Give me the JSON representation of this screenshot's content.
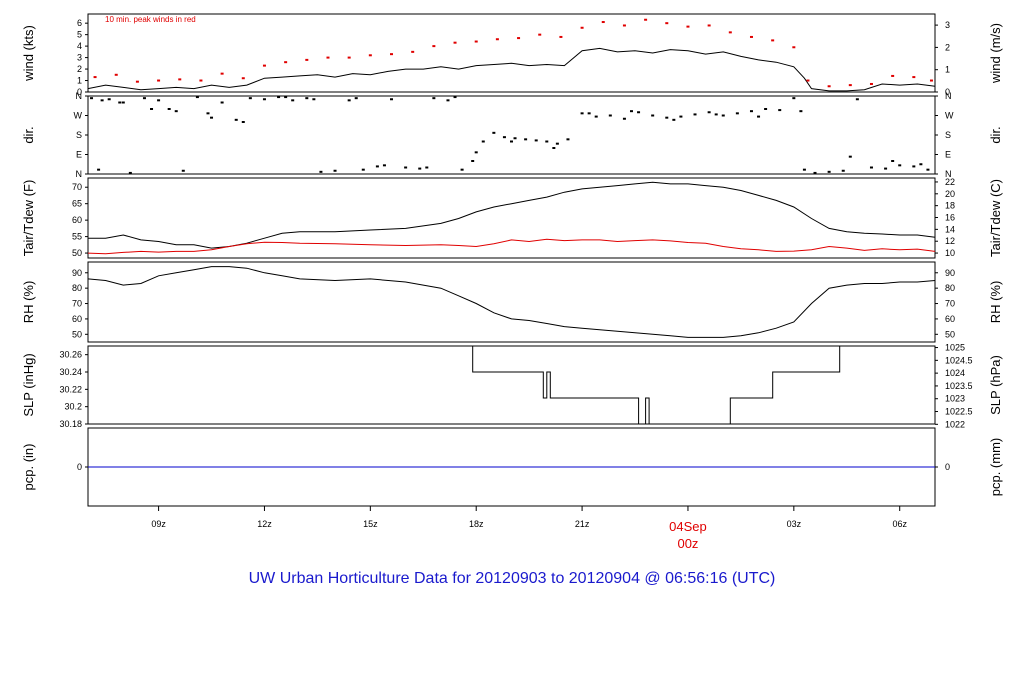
{
  "title": "UW Urban Horticulture Data for 20120903  to  20120904 @ 06:56:16  (UTC)",
  "colors": {
    "line": "#000000",
    "peak": "#e00000",
    "precip": "#0000cc",
    "title": "#1a1acd",
    "day": "#e00000"
  },
  "x_axis": {
    "range_hours": [
      7,
      31
    ],
    "ticks": [
      {
        "hour": 9,
        "label": "09z"
      },
      {
        "hour": 12,
        "label": "12z"
      },
      {
        "hour": 15,
        "label": "15z"
      },
      {
        "hour": 18,
        "label": "18z"
      },
      {
        "hour": 21,
        "label": "21z"
      },
      {
        "hour": 24,
        "label": "00z",
        "date_label": "04Sep",
        "highlight": true
      },
      {
        "hour": 27,
        "label": "03z"
      },
      {
        "hour": 30,
        "label": "06z"
      }
    ]
  },
  "chart_data": [
    {
      "id": "wind",
      "type": "line",
      "ylabel_left": "wind (kts)",
      "ylabel_right": "wind (m/s)",
      "ylim": [
        0,
        6.8
      ],
      "yticks_left": [
        0,
        1,
        2,
        3,
        4,
        5,
        6
      ],
      "yticks_right": [
        0,
        1,
        2,
        3
      ],
      "right_scale": 0.5144,
      "annotation": "10 min. peak winds in red",
      "series": [
        {
          "role": "speed",
          "x": [
            7.0,
            7.5,
            8.0,
            8.5,
            9.0,
            9.5,
            10.0,
            10.5,
            11.0,
            11.5,
            12.0,
            12.5,
            13.0,
            13.5,
            14.0,
            14.5,
            15.0,
            15.5,
            16.0,
            16.5,
            17.0,
            17.5,
            18.0,
            18.5,
            19.0,
            19.5,
            20.0,
            20.5,
            21.0,
            21.5,
            22.0,
            22.5,
            23.0,
            23.5,
            24.0,
            24.5,
            25.0,
            25.5,
            26.0,
            26.5,
            27.0,
            27.3,
            27.5,
            28.0,
            28.5,
            29.0,
            29.5,
            30.0,
            30.5,
            31.0
          ],
          "y": [
            0.3,
            0.6,
            0.4,
            0.2,
            0.3,
            0.4,
            0.3,
            0.6,
            0.4,
            0.6,
            1.2,
            1.3,
            1.4,
            1.5,
            1.3,
            1.6,
            1.5,
            1.8,
            2.0,
            2.0,
            2.2,
            2.0,
            2.3,
            2.4,
            2.5,
            2.3,
            2.4,
            2.3,
            3.6,
            3.8,
            3.5,
            3.6,
            3.4,
            3.7,
            3.6,
            3.3,
            3.5,
            3.1,
            2.8,
            2.6,
            2.2,
            1.2,
            0.3,
            0.1,
            0.1,
            0.2,
            0.7,
            0.6,
            0.7,
            0.5
          ]
        },
        {
          "role": "peak",
          "x": [
            7.2,
            7.8,
            8.4,
            9.0,
            9.6,
            10.2,
            10.8,
            11.4,
            12.0,
            12.6,
            13.2,
            13.8,
            14.4,
            15.0,
            15.6,
            16.2,
            16.8,
            17.4,
            18.0,
            18.6,
            19.2,
            19.8,
            20.4,
            21.0,
            21.6,
            22.2,
            22.8,
            23.4,
            24.0,
            24.6,
            25.2,
            25.8,
            26.4,
            27.0,
            27.4,
            28.0,
            28.6,
            29.2,
            29.8,
            30.4,
            30.9
          ],
          "y": [
            1.3,
            1.5,
            0.9,
            1.0,
            1.1,
            1.0,
            1.6,
            1.2,
            2.3,
            2.6,
            2.8,
            3.0,
            3.0,
            3.2,
            3.3,
            3.5,
            4.0,
            4.3,
            4.4,
            4.6,
            4.7,
            5.0,
            4.8,
            5.6,
            6.1,
            5.8,
            6.3,
            6.0,
            5.7,
            5.8,
            5.2,
            4.8,
            4.5,
            3.9,
            1.0,
            0.5,
            0.6,
            0.7,
            1.4,
            1.3,
            1.0
          ]
        }
      ]
    },
    {
      "id": "dir",
      "type": "scatter",
      "ylabel_left": "dir.",
      "ylabel_right": "dir.",
      "ylim": [
        0,
        360
      ],
      "yticks_left": [
        {
          "v": 360,
          "label": "N"
        },
        {
          "v": 270,
          "label": "W"
        },
        {
          "v": 180,
          "label": "S"
        },
        {
          "v": 90,
          "label": "E"
        },
        {
          "v": 0,
          "label": "N"
        }
      ],
      "yticks_right": [
        {
          "v": 360,
          "label": "N"
        },
        {
          "v": 270,
          "label": "W"
        },
        {
          "v": 180,
          "label": "S"
        },
        {
          "v": 90,
          "label": "E"
        },
        {
          "v": 0,
          "label": "N"
        }
      ],
      "series": [
        {
          "role": "direction",
          "x": [
            7.1,
            7.3,
            7.6,
            7.9,
            8.2,
            8.6,
            9.0,
            9.3,
            9.7,
            10.1,
            10.4,
            10.8,
            11.2,
            11.6,
            12.0,
            12.4,
            12.8,
            13.2,
            13.6,
            14.0,
            14.4,
            14.8,
            15.2,
            15.6,
            16.0,
            16.4,
            16.8,
            17.2,
            17.6,
            17.9,
            18.2,
            18.5,
            18.8,
            19.1,
            19.4,
            19.7,
            20.0,
            20.3,
            20.6,
            21.0,
            21.4,
            21.8,
            22.2,
            22.6,
            23.0,
            23.4,
            23.8,
            24.2,
            24.6,
            25.0,
            25.4,
            25.8,
            26.2,
            26.6,
            27.0,
            27.3,
            27.6,
            28.0,
            28.4,
            28.8,
            29.2,
            29.6,
            30.0,
            30.4,
            30.8,
            7.4,
            8.0,
            8.8,
            9.5,
            10.5,
            11.4,
            12.6,
            13.4,
            14.6,
            15.4,
            16.6,
            17.4,
            18.0,
            19.0,
            20.2,
            21.2,
            22.4,
            23.6,
            24.8,
            26.0,
            27.2,
            28.6,
            29.8,
            30.6
          ],
          "y": [
            350,
            20,
            345,
            330,
            5,
            350,
            340,
            300,
            15,
            355,
            280,
            330,
            250,
            350,
            345,
            355,
            340,
            350,
            10,
            15,
            340,
            20,
            35,
            345,
            30,
            25,
            350,
            340,
            20,
            60,
            150,
            190,
            170,
            165,
            160,
            155,
            150,
            140,
            160,
            280,
            265,
            270,
            255,
            285,
            270,
            260,
            265,
            275,
            285,
            270,
            280,
            290,
            300,
            295,
            350,
            20,
            5,
            10,
            15,
            345,
            30,
            25,
            40,
            35,
            20,
            340,
            330,
            300,
            290,
            260,
            240,
            355,
            345,
            350,
            40,
            30,
            355,
            100,
            150,
            120,
            280,
            290,
            250,
            275,
            265,
            290,
            80,
            60,
            45
          ]
        }
      ]
    },
    {
      "id": "temp",
      "type": "line",
      "ylabel_left": "Tair/Tdew (F)",
      "ylabel_right": "Tair/Tdew (C)",
      "ylim": [
        48.5,
        72.8
      ],
      "yticks_left": [
        50,
        55,
        60,
        65,
        70
      ],
      "yticks_right": [
        10,
        12,
        14,
        16,
        18,
        20,
        22
      ],
      "right_unit": "C",
      "series": [
        {
          "role": "air_temperature",
          "x": [
            7.0,
            7.5,
            8.0,
            8.5,
            9.0,
            9.5,
            10.0,
            10.5,
            11.0,
            11.5,
            12.0,
            12.5,
            13.0,
            14.0,
            15.0,
            16.0,
            17.0,
            17.5,
            18.0,
            18.5,
            19.0,
            19.5,
            20.0,
            20.5,
            21.0,
            21.5,
            22.0,
            22.5,
            23.0,
            23.5,
            24.0,
            24.5,
            25.0,
            25.5,
            26.0,
            26.5,
            27.0,
            27.5,
            28.0,
            28.5,
            29.0,
            29.5,
            30.0,
            30.5,
            31.0
          ],
          "y": [
            54.5,
            54.5,
            55.5,
            54.0,
            53.5,
            52.5,
            52.5,
            51.5,
            52.0,
            53.0,
            54.5,
            56.0,
            56.5,
            56.5,
            57.0,
            57.5,
            59.0,
            60.5,
            62.5,
            64.0,
            65.0,
            66.0,
            67.0,
            68.5,
            69.5,
            70.0,
            70.5,
            71.0,
            71.5,
            71.0,
            71.0,
            70.5,
            70.0,
            69.0,
            67.5,
            66.0,
            64.0,
            60.5,
            57.5,
            56.5,
            56.0,
            55.8,
            55.5,
            55.5,
            54.8
          ]
        },
        {
          "role": "dew_point",
          "x": [
            7.0,
            7.5,
            8.0,
            8.5,
            9.0,
            9.5,
            10.0,
            10.5,
            11.0,
            11.5,
            12.0,
            12.5,
            13.0,
            14.0,
            15.0,
            16.0,
            17.0,
            17.5,
            18.0,
            18.5,
            19.0,
            19.5,
            20.0,
            20.5,
            21.0,
            21.5,
            22.0,
            22.5,
            23.0,
            23.5,
            24.0,
            24.5,
            25.0,
            25.5,
            26.0,
            26.5,
            27.0,
            27.5,
            28.0,
            28.5,
            29.0,
            29.5,
            30.0,
            30.5,
            31.0
          ],
          "y": [
            50.0,
            49.8,
            50.2,
            50.5,
            50.3,
            50.5,
            50.5,
            51.0,
            52.0,
            52.8,
            53.3,
            53.2,
            53.0,
            52.8,
            52.5,
            52.3,
            52.5,
            52.3,
            52.0,
            52.8,
            54.0,
            53.5,
            54.2,
            53.8,
            54.0,
            54.0,
            53.5,
            53.8,
            54.0,
            53.7,
            53.2,
            53.0,
            52.0,
            51.3,
            51.0,
            50.5,
            50.6,
            51.0,
            52.0,
            51.5,
            50.8,
            51.3,
            51.0,
            51.2,
            50.5
          ]
        }
      ]
    },
    {
      "id": "rh",
      "type": "line",
      "ylabel_left": "RH (%)",
      "ylabel_right": "RH (%)",
      "ylim": [
        45,
        97
      ],
      "yticks_left": [
        50,
        60,
        70,
        80,
        90
      ],
      "yticks_right": [
        50,
        60,
        70,
        80,
        90
      ],
      "series": [
        {
          "role": "relative_humidity",
          "x": [
            7.0,
            7.5,
            8.0,
            8.5,
            9.0,
            9.5,
            10.0,
            10.5,
            11.0,
            11.5,
            12.0,
            12.5,
            13.0,
            14.0,
            15.0,
            16.0,
            17.0,
            17.5,
            18.0,
            18.5,
            19.0,
            19.5,
            20.0,
            20.5,
            21.0,
            21.5,
            22.0,
            22.5,
            23.0,
            23.5,
            24.0,
            24.5,
            25.0,
            25.5,
            26.0,
            26.5,
            27.0,
            27.5,
            28.0,
            28.5,
            29.0,
            29.5,
            30.0,
            30.5,
            31.0
          ],
          "y": [
            86,
            85,
            82,
            83,
            88,
            90,
            92,
            94,
            94,
            93,
            90,
            88,
            86,
            85,
            86,
            84,
            80,
            75,
            70,
            64,
            60,
            59,
            57,
            55,
            54,
            53,
            52,
            51,
            50,
            49,
            48,
            48,
            48,
            49,
            51,
            54,
            58,
            70,
            80,
            82,
            83,
            83,
            84,
            84,
            85
          ]
        }
      ]
    },
    {
      "id": "slp",
      "type": "line",
      "ylabel_left": "SLP (inHg)",
      "ylabel_right": "SLP (hPa)",
      "ylim": [
        30.18,
        30.27
      ],
      "yticks_left": [
        30.18,
        30.2,
        30.22,
        30.24,
        30.26
      ],
      "yticks_right": [
        1022,
        1022.5,
        1023,
        1023.5,
        1024,
        1024.5,
        1025
      ],
      "series": [
        {
          "role": "sea_level_pressure",
          "step": true,
          "x": [
            7.0,
            17.9,
            17.9,
            19.9,
            19.9,
            20.0,
            20.0,
            20.1,
            20.1,
            20.2,
            20.2,
            22.6,
            22.6,
            22.8,
            22.8,
            22.9,
            22.9,
            23.1,
            23.1,
            25.2,
            25.2,
            26.4,
            26.4,
            28.3,
            28.3,
            31.0
          ],
          "y": [
            30.27,
            30.27,
            30.24,
            30.24,
            30.21,
            30.21,
            30.24,
            30.24,
            30.21,
            30.21,
            30.21,
            30.21,
            30.18,
            30.18,
            30.21,
            30.21,
            30.18,
            30.18,
            30.18,
            30.18,
            30.21,
            30.21,
            30.24,
            30.24,
            30.27,
            30.27
          ]
        }
      ]
    },
    {
      "id": "precip",
      "type": "line",
      "ylabel_left": "pcp. (in)",
      "ylabel_right": "pcp. (mm)",
      "ylim": [
        -0.5,
        0.5
      ],
      "yticks_left": [
        0
      ],
      "yticks_right": [
        0
      ],
      "series": [
        {
          "role": "precipitation",
          "x": [
            7.0,
            31.0
          ],
          "y": [
            0,
            0
          ]
        }
      ]
    }
  ]
}
